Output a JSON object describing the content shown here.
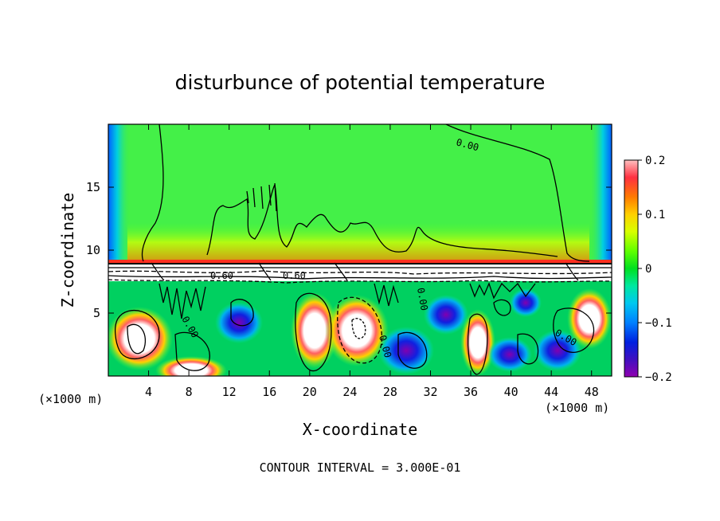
{
  "chart_data": {
    "type": "heatmap",
    "title": "disturbunce of potential temperature",
    "xlabel": "X-coordinate",
    "ylabel": "Z-coordinate",
    "x_unit_left": "(×1000 m)",
    "x_unit_right": "(×1000 m)",
    "footer": "CONTOUR INTERVAL = 3.000E-01",
    "xlim": [
      0,
      50
    ],
    "ylim": [
      0,
      20
    ],
    "xticks": [
      4,
      8,
      12,
      16,
      20,
      24,
      28,
      32,
      36,
      40,
      44,
      48
    ],
    "yticks": [
      5,
      10,
      15
    ],
    "colorbar": {
      "range": [
        -0.2,
        0.2
      ],
      "ticks": [
        0.2,
        0.1,
        0,
        -0.1,
        -0.2
      ],
      "tick_labels": [
        "0.2",
        "0.1",
        "0",
        "−0.1",
        "−0.2"
      ]
    },
    "contour_labels": [
      {
        "text": "0.00",
        "x": 36,
        "y": 18.6
      },
      {
        "text": "0.60",
        "x": 11.3,
        "y": 7.8
      },
      {
        "text": "0.60",
        "x": 18.8,
        "y": 7.8
      },
      {
        "text": "0.00",
        "x": 7.5,
        "y": 5.0
      },
      {
        "text": "0.00",
        "x": 27.0,
        "y": 2.8
      },
      {
        "text": "0.00",
        "x": 31.0,
        "y": 6.4
      },
      {
        "text": "0.00",
        "x": 45.2,
        "y": 3.5
      }
    ],
    "grid": false
  }
}
